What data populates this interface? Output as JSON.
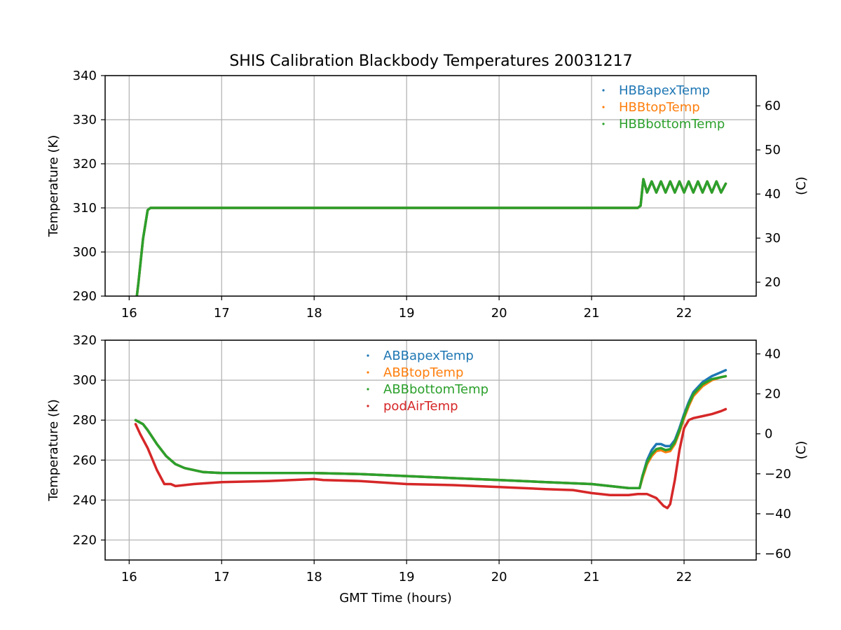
{
  "title": "SHIS Calibration Blackbody Temperatures 20031217",
  "colors": {
    "blue": "#1f77b4",
    "orange": "#ff7f0e",
    "green": "#2ca02c",
    "red": "#d62728",
    "grid": "#b0b0b0",
    "axis": "#000000"
  },
  "chart_data": [
    {
      "type": "scatter",
      "name": "hbb-chart",
      "xlabel": "",
      "ylabel": "Temperature (K)",
      "ylabel_right": "(C)",
      "xlim": [
        15.74,
        22.78
      ],
      "ylim": [
        290,
        340
      ],
      "ylim_right": [
        16.85,
        66.85
      ],
      "xticks": [
        16,
        17,
        18,
        19,
        20,
        21,
        22
      ],
      "yticks": [
        290,
        300,
        310,
        320,
        330,
        340
      ],
      "yticks_right": [
        20,
        30,
        40,
        50,
        60
      ],
      "grid": true,
      "legend_position": "top-right",
      "series": [
        {
          "name": "HBBapexTemp",
          "color": "blue",
          "x": [
            16.08,
            16.1,
            16.15,
            16.2,
            16.23,
            16.5,
            17,
            18,
            19,
            20,
            21,
            21.5,
            21.53,
            21.56,
            21.6,
            21.65,
            21.7,
            21.75,
            21.8,
            21.85,
            21.9,
            21.95,
            22.0,
            22.05,
            22.1,
            22.15,
            22.2,
            22.25,
            22.3,
            22.35,
            22.4,
            22.45
          ],
          "y": [
            289.5,
            293,
            303,
            309.5,
            310,
            310,
            310,
            310,
            310,
            310,
            310,
            310,
            310.5,
            316.5,
            313.5,
            316,
            313.5,
            316,
            313.5,
            316,
            313.5,
            316,
            313.5,
            316,
            313.5,
            316,
            313.5,
            316,
            313.5,
            316,
            313.5,
            315.5
          ]
        },
        {
          "name": "HBBtopTemp",
          "color": "orange",
          "x": [
            16.08,
            16.1,
            16.15,
            16.2,
            16.23,
            16.5,
            17,
            18,
            19,
            20,
            21,
            21.5,
            21.53,
            21.56,
            21.6,
            21.65,
            21.7,
            21.75,
            21.8,
            21.85,
            21.9,
            21.95,
            22.0,
            22.05,
            22.1,
            22.15,
            22.2,
            22.25,
            22.3,
            22.35,
            22.4,
            22.45
          ],
          "y": [
            289.5,
            293,
            303,
            309.5,
            310,
            310,
            310,
            310,
            310,
            310,
            310,
            310,
            310.5,
            316.5,
            313.5,
            316,
            313.5,
            316,
            313.5,
            316,
            313.5,
            316,
            313.5,
            316,
            313.5,
            316,
            313.5,
            316,
            313.5,
            316,
            313.5,
            315.5
          ]
        },
        {
          "name": "HBBbottomTemp",
          "color": "green",
          "x": [
            16.08,
            16.1,
            16.15,
            16.2,
            16.23,
            16.5,
            17,
            18,
            19,
            20,
            21,
            21.5,
            21.53,
            21.56,
            21.6,
            21.65,
            21.7,
            21.75,
            21.8,
            21.85,
            21.9,
            21.95,
            22.0,
            22.05,
            22.1,
            22.15,
            22.2,
            22.25,
            22.3,
            22.35,
            22.4,
            22.45
          ],
          "y": [
            289.5,
            293,
            303,
            309.5,
            310,
            310,
            310,
            310,
            310,
            310,
            310,
            310,
            310.5,
            316.5,
            313.5,
            316,
            313.5,
            316,
            313.5,
            316,
            313.5,
            316,
            313.5,
            316,
            313.5,
            316,
            313.5,
            316,
            313.5,
            316,
            313.5,
            315.5
          ]
        }
      ]
    },
    {
      "type": "scatter",
      "name": "abb-chart",
      "xlabel": "GMT Time (hours)",
      "ylabel": "Temperature (K)",
      "ylabel_right": "(C)",
      "xlim": [
        15.74,
        22.78
      ],
      "ylim": [
        210,
        320
      ],
      "ylim_right": [
        -63.15,
        46.85
      ],
      "xticks": [
        16,
        17,
        18,
        19,
        20,
        21,
        22
      ],
      "yticks": [
        220,
        240,
        260,
        280,
        300,
        320
      ],
      "yticks_right": [
        -60,
        -40,
        -20,
        0,
        20,
        40
      ],
      "grid": true,
      "legend_position": "top-center",
      "series": [
        {
          "name": "ABBapexTemp",
          "color": "blue",
          "x": [
            16.07,
            16.15,
            16.2,
            16.3,
            16.4,
            16.5,
            16.6,
            16.8,
            17,
            17.5,
            18,
            18.5,
            19,
            19.5,
            20,
            20.5,
            21,
            21.2,
            21.4,
            21.52,
            21.55,
            21.6,
            21.65,
            21.7,
            21.75,
            21.8,
            21.85,
            21.9,
            21.95,
            22.0,
            22.05,
            22.1,
            22.2,
            22.3,
            22.4,
            22.45
          ],
          "y": [
            280,
            278,
            275,
            268,
            262,
            258,
            256,
            254,
            253.5,
            253.5,
            253.5,
            253,
            252,
            251,
            250,
            249,
            248,
            247,
            246,
            246,
            252,
            260,
            265,
            268,
            268,
            267,
            267,
            270,
            276,
            283,
            289,
            294,
            299,
            302,
            304,
            305
          ]
        },
        {
          "name": "ABBtopTemp",
          "color": "orange",
          "x": [
            16.07,
            16.15,
            16.2,
            16.3,
            16.4,
            16.5,
            16.6,
            16.8,
            17,
            17.5,
            18,
            18.5,
            19,
            19.5,
            20,
            20.5,
            21,
            21.2,
            21.4,
            21.52,
            21.55,
            21.6,
            21.65,
            21.7,
            21.75,
            21.8,
            21.85,
            21.9,
            21.95,
            22.0,
            22.05,
            22.1,
            22.2,
            22.3,
            22.4,
            22.45
          ],
          "y": [
            280,
            278,
            275,
            268,
            262,
            258,
            256,
            254,
            253.5,
            253.5,
            253.5,
            253,
            252,
            251,
            250,
            249,
            248,
            247,
            246,
            246,
            251,
            258,
            262,
            264.5,
            265,
            264,
            264.5,
            268,
            274,
            281,
            287,
            292,
            297,
            300,
            301.5,
            302
          ]
        },
        {
          "name": "ABBbottomTemp",
          "color": "green",
          "x": [
            16.07,
            16.15,
            16.2,
            16.3,
            16.4,
            16.5,
            16.6,
            16.8,
            17,
            17.5,
            18,
            18.5,
            19,
            19.5,
            20,
            20.5,
            21,
            21.2,
            21.4,
            21.52,
            21.55,
            21.6,
            21.65,
            21.7,
            21.75,
            21.8,
            21.85,
            21.9,
            21.95,
            22.0,
            22.05,
            22.1,
            22.2,
            22.3,
            22.4,
            22.45
          ],
          "y": [
            280,
            278,
            275,
            268,
            262,
            258,
            256,
            254,
            253.5,
            253.5,
            253.5,
            253,
            252,
            251,
            250,
            249,
            248,
            247,
            246,
            246,
            252,
            259,
            263,
            265.5,
            266,
            265,
            265.5,
            269,
            275,
            282,
            288,
            293,
            298,
            300.5,
            301.5,
            302
          ]
        },
        {
          "name": "podAirTemp",
          "color": "red",
          "x": [
            16.07,
            16.12,
            16.2,
            16.3,
            16.38,
            16.45,
            16.5,
            16.7,
            17,
            17.5,
            18.0,
            18.1,
            18.5,
            19,
            19.5,
            20,
            20.5,
            20.8,
            21,
            21.2,
            21.4,
            21.5,
            21.6,
            21.7,
            21.78,
            21.82,
            21.85,
            21.9,
            21.95,
            22.0,
            22.05,
            22.1,
            22.2,
            22.3,
            22.4,
            22.45
          ],
          "y": [
            278,
            273,
            266,
            255,
            248,
            248,
            247,
            248,
            249,
            249.5,
            250.5,
            250,
            249.5,
            248,
            247.5,
            246.5,
            245.5,
            245,
            243.5,
            242.5,
            242.5,
            243,
            243,
            241,
            237,
            236,
            238,
            250,
            265,
            276,
            280,
            281,
            282,
            283,
            284.5,
            285.5
          ]
        }
      ]
    }
  ]
}
